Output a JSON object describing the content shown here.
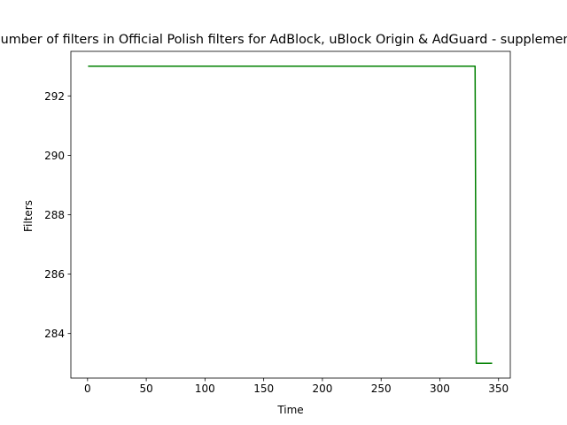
{
  "chart_data": {
    "type": "line",
    "title": "Number of filters in Official Polish filters for AdBlock, uBlock Origin & AdGuard - supplement",
    "xlabel": "Time",
    "ylabel": "Filters",
    "xlim": [
      -14.2,
      360
    ],
    "ylim": [
      282.5,
      293.5
    ],
    "xticks": [
      0,
      50,
      100,
      150,
      200,
      250,
      300,
      350
    ],
    "yticks": [
      284,
      286,
      288,
      290,
      292
    ],
    "grid": false,
    "legend": "none",
    "series": [
      {
        "color": "#008000",
        "points": [
          [
            1,
            293
          ],
          [
            330,
            293
          ],
          [
            331,
            283
          ],
          [
            344,
            283
          ]
        ]
      }
    ]
  }
}
